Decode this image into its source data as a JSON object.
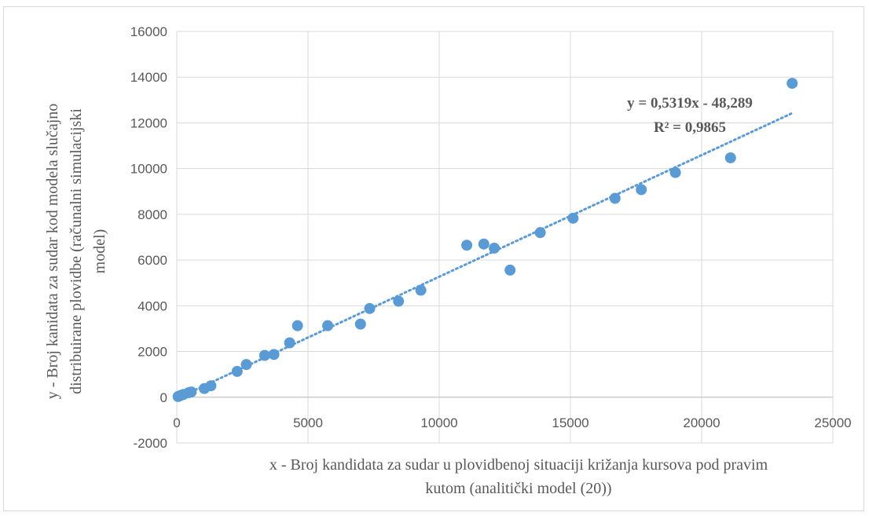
{
  "chart_data": {
    "type": "scatter",
    "title": "",
    "xlabel_lines": [
      "x - Broj kandidata za sudar u plovidbenoj situaciji križanja kursova pod pravim",
      "kutom (analitički model (20))"
    ],
    "ylabel_lines": [
      "y - Broj kanidata za sudar kod modela slučajno",
      "distribuirane plovidbe (računalni simulacijski",
      "model)"
    ],
    "xlim": [
      0,
      25000
    ],
    "ylim": [
      -2000,
      16000
    ],
    "x_ticks": [
      0,
      5000,
      10000,
      15000,
      20000,
      25000
    ],
    "y_ticks": [
      -2000,
      0,
      2000,
      4000,
      6000,
      8000,
      10000,
      12000,
      14000,
      16000
    ],
    "grid": true,
    "marker_color": "#5b9bd5",
    "trendline": {
      "type": "linear",
      "slope": 0.5319,
      "intercept": -48.289,
      "style": "dotted",
      "color": "#5b9bd5",
      "equation_label": "y = 0,5319x - 48,289",
      "r2_label": "R² = 0,9865"
    },
    "series": [
      {
        "points": [
          [
            50,
            30
          ],
          [
            150,
            80
          ],
          [
            250,
            120
          ],
          [
            450,
            200
          ],
          [
            550,
            230
          ],
          [
            1050,
            380
          ],
          [
            1300,
            500
          ],
          [
            2300,
            1130
          ],
          [
            2650,
            1430
          ],
          [
            3350,
            1830
          ],
          [
            3700,
            1870
          ],
          [
            4300,
            2380
          ],
          [
            4600,
            3130
          ],
          [
            5750,
            3130
          ],
          [
            7000,
            3200
          ],
          [
            7350,
            3880
          ],
          [
            8450,
            4200
          ],
          [
            9300,
            4680
          ],
          [
            11050,
            6650
          ],
          [
            11700,
            6700
          ],
          [
            12100,
            6520
          ],
          [
            12700,
            5560
          ],
          [
            13850,
            7200
          ],
          [
            15100,
            7830
          ],
          [
            16700,
            8700
          ],
          [
            17700,
            9080
          ],
          [
            19000,
            9830
          ],
          [
            21100,
            10470
          ],
          [
            23450,
            13730
          ]
        ]
      }
    ]
  }
}
